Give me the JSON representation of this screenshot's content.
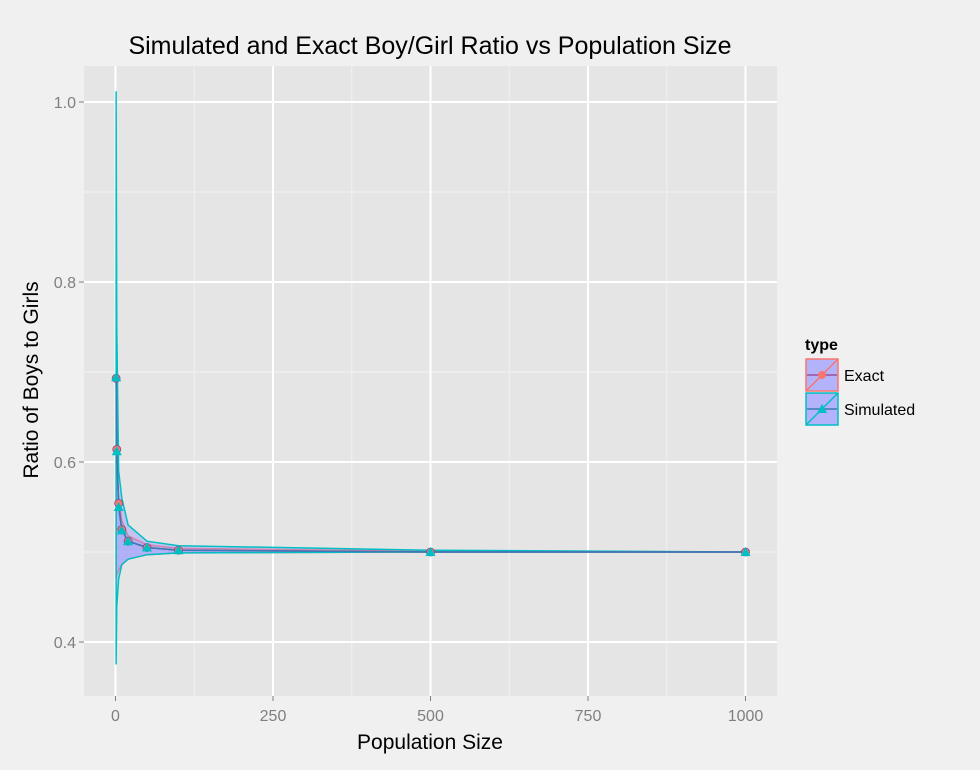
{
  "chart_data": {
    "type": "line",
    "title": "Simulated and Exact Boy/Girl Ratio vs Population Size",
    "xlabel": "Population Size",
    "ylabel": "Ratio of Boys to Girls",
    "xlim": [
      -50,
      1050
    ],
    "ylim": [
      0.34,
      1.04
    ],
    "x_ticks": [
      0,
      250,
      500,
      750,
      1000
    ],
    "x_tick_labels": [
      "0",
      "250",
      "500",
      "750",
      "1000"
    ],
    "y_ticks": [
      0.4,
      0.6,
      0.8,
      1.0
    ],
    "y_tick_labels": [
      "0.4",
      "0.6",
      "0.8",
      "1.0"
    ],
    "grid": true,
    "legend": {
      "title": "type",
      "position": "right",
      "entries": [
        "Exact",
        "Simulated"
      ]
    },
    "series": [
      {
        "name": "Exact",
        "color": "#f8766d",
        "marker": "circle",
        "x": [
          1,
          2,
          5,
          10,
          20,
          50,
          100,
          500,
          1000
        ],
        "y": [
          0.693,
          0.614,
          0.554,
          0.525,
          0.512,
          0.505,
          0.502,
          0.5,
          0.5
        ],
        "ribbon_lower": [
          0.47,
          0.475,
          0.48,
          0.486,
          0.492,
          0.497,
          0.499,
          0.5,
          0.5
        ],
        "ribbon_upper": [
          0.62,
          0.59,
          0.56,
          0.535,
          0.518,
          0.508,
          0.504,
          0.501,
          0.5
        ]
      },
      {
        "name": "Simulated",
        "color": "#00bfc4",
        "marker": "triangle",
        "x": [
          1,
          2,
          5,
          10,
          20,
          50,
          100,
          500,
          1000
        ],
        "y": [
          0.694,
          0.612,
          0.55,
          0.524,
          0.512,
          0.505,
          0.502,
          0.5,
          0.5
        ],
        "ribbon_lower": [
          0.375,
          0.44,
          0.47,
          0.486,
          0.492,
          0.497,
          0.499,
          0.5,
          0.5
        ],
        "ribbon_upper": [
          1.012,
          0.75,
          0.59,
          0.56,
          0.53,
          0.512,
          0.507,
          0.502,
          0.5
        ]
      }
    ],
    "ribbon_fill": "#9999ff",
    "panel_background": "#e5e5e5",
    "grid_color": "#ffffff"
  }
}
